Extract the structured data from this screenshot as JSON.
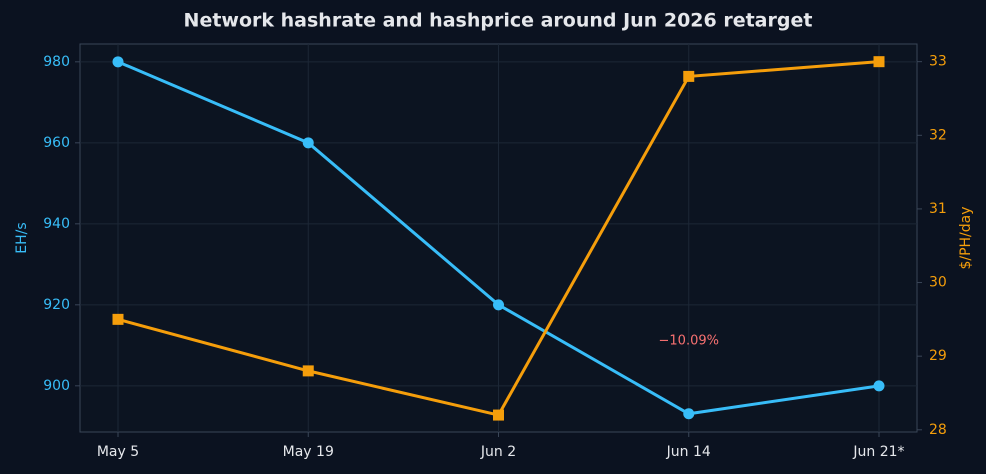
{
  "chart_data": {
    "type": "line",
    "title": "Network hashrate and hashprice around Jun 2026 retarget",
    "categories": [
      "May 5",
      "May 19",
      "Jun 2",
      "Jun 14",
      "Jun 21*"
    ],
    "series": [
      {
        "color": "#38bdf8",
        "marker": "circle",
        "values": [
          980,
          960,
          920,
          893.1,
          900
        ]
      },
      {
        "color": "#f59e0b",
        "marker": "square",
        "axis": "y2",
        "values": [
          29.5,
          28.8,
          28.2,
          32.8,
          33
        ]
      }
    ],
    "y_label": "EH/s",
    "y2_label": "$/PH/day",
    "ylim": [
      888.6,
      984.4
    ],
    "yticks": [
      900,
      920,
      940,
      960,
      980
    ],
    "y2lim": [
      27.97,
      33.24
    ],
    "y2ticks": [
      28,
      29,
      30,
      31,
      32,
      33
    ],
    "annotations": [
      {
        "text": "−10.09%",
        "color": "#f87171"
      }
    ],
    "grid": true
  }
}
